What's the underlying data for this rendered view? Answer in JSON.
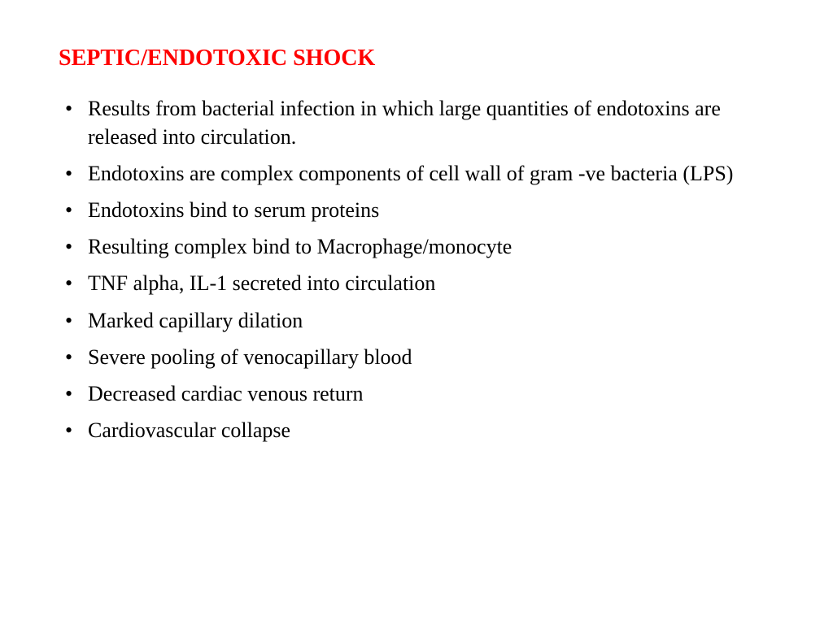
{
  "title": {
    "text": "SEPTIC/ENDOTOXIC SHOCK",
    "color": "#ff0000",
    "fontsize": 28,
    "fontweight": "bold"
  },
  "body": {
    "color": "#000000",
    "fontsize": 26,
    "line_height": 1.35,
    "bullet_char": "•"
  },
  "bullets": [
    "Results from bacterial infection in which large quantities of endotoxins are released into circulation.",
    "Endotoxins are complex components of cell wall of gram -ve bacteria (LPS)",
    "Endotoxins bind to serum proteins",
    "Resulting complex bind to Macrophage/monocyte",
    "TNF alpha, IL-1 secreted into circulation",
    "Marked capillary dilation",
    "Severe pooling of venocapillary blood",
    "Decreased cardiac venous return",
    "Cardiovascular collapse"
  ],
  "background_color": "#ffffff"
}
